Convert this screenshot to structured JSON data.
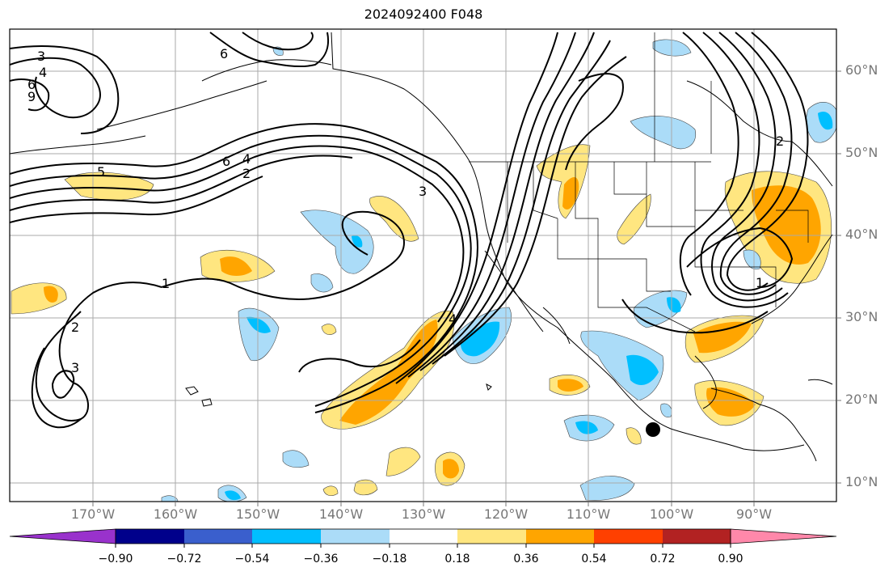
{
  "title": "2024092400 F048",
  "lat_labels": [
    "60°N",
    "50°N",
    "40°N",
    "30°N",
    "20°N",
    "10°N"
  ],
  "lon_labels": [
    "170°W",
    "160°W",
    "150°W",
    "140°W",
    "130°W",
    "120°W",
    "110°W",
    "100°W",
    "90°W"
  ],
  "contour_labels": [
    "3",
    "4",
    "6",
    "9",
    "6",
    "5",
    "6",
    "4",
    "2",
    "3",
    "1",
    "2",
    "3",
    "4",
    "2",
    "1"
  ],
  "colorbar": {
    "tick_labels": [
      "−0.90",
      "−0.72",
      "−0.54",
      "−0.36",
      "−0.18",
      "0.18",
      "0.36",
      "0.54",
      "0.72",
      "0.90"
    ],
    "colors": [
      "#9932cc",
      "#00008b",
      "#3a5fcd",
      "#00bfff",
      "#abdcf8",
      "#ffffff",
      "#ffe680",
      "#ffa500",
      "#ff4000",
      "#b22222",
      "#ff88aa"
    ]
  },
  "marker": "storm-center-dot"
}
